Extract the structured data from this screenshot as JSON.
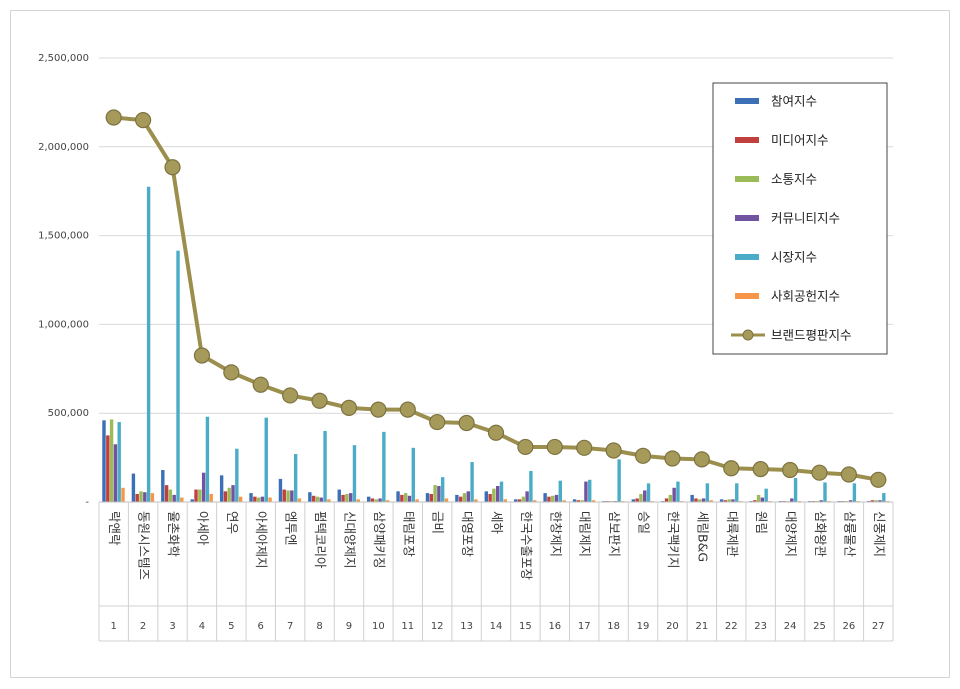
{
  "chart_data": {
    "type": "bar",
    "title": "",
    "xlabel": "",
    "ylabel": "",
    "ylim": [
      0,
      2500000
    ],
    "yticks": [
      "-",
      "500,000",
      "1,000,000",
      "1,500,000",
      "2,000,000",
      "2,500,000"
    ],
    "grid": true,
    "legend_position": "top-right",
    "categories": [
      "락앤락",
      "동원시스템즈",
      "율촌화학",
      "아세아",
      "연우",
      "아세아제지",
      "엠투엔",
      "펌텍코리아",
      "신대양제지",
      "삼양패키징",
      "태림포장",
      "금비",
      "대영포장",
      "세하",
      "한국수출포장",
      "한창제지",
      "대림제지",
      "삼보판지",
      "승일",
      "한국팩키지",
      "세림B&G",
      "대륙제관",
      "원림",
      "대양제지",
      "삼화왕관",
      "삼륭물산",
      "신풍제지"
    ],
    "ranks": [
      "1",
      "2",
      "3",
      "4",
      "5",
      "6",
      "7",
      "8",
      "9",
      "10",
      "11",
      "12",
      "13",
      "14",
      "15",
      "16",
      "17",
      "18",
      "19",
      "20",
      "21",
      "22",
      "23",
      "24",
      "25",
      "26",
      "27"
    ],
    "series": [
      {
        "name": "참여지수",
        "color": "#3b6fb6",
        "kind": "bar",
        "values": [
          460000,
          160000,
          180000,
          15000,
          150000,
          50000,
          130000,
          55000,
          70000,
          30000,
          60000,
          50000,
          40000,
          60000,
          15000,
          50000,
          15000,
          5000,
          15000,
          5000,
          40000,
          15000,
          5000,
          5000,
          5000,
          5000,
          5000
        ]
      },
      {
        "name": "미디어지수",
        "color": "#c0403d",
        "kind": "bar",
        "values": [
          375000,
          45000,
          95000,
          70000,
          60000,
          30000,
          70000,
          35000,
          40000,
          20000,
          40000,
          45000,
          30000,
          45000,
          15000,
          30000,
          10000,
          5000,
          20000,
          20000,
          20000,
          10000,
          10000,
          5000,
          5000,
          5000,
          10000
        ]
      },
      {
        "name": "소통지수",
        "color": "#9bbb59",
        "kind": "bar",
        "values": [
          465000,
          60000,
          70000,
          70000,
          80000,
          25000,
          65000,
          30000,
          45000,
          15000,
          50000,
          95000,
          50000,
          75000,
          30000,
          35000,
          10000,
          5000,
          45000,
          40000,
          15000,
          15000,
          40000,
          5000,
          5000,
          5000,
          10000
        ]
      },
      {
        "name": "커뮤니티지수",
        "color": "#7153a0",
        "kind": "bar",
        "values": [
          325000,
          55000,
          40000,
          165000,
          95000,
          30000,
          65000,
          25000,
          50000,
          20000,
          35000,
          90000,
          60000,
          90000,
          60000,
          40000,
          115000,
          5000,
          65000,
          80000,
          20000,
          15000,
          25000,
          20000,
          10000,
          10000,
          10000
        ]
      },
      {
        "name": "시장지수",
        "color": "#4aacc6",
        "kind": "bar",
        "values": [
          450000,
          1775000,
          1415000,
          480000,
          300000,
          475000,
          270000,
          400000,
          320000,
          395000,
          305000,
          140000,
          225000,
          115000,
          175000,
          120000,
          125000,
          240000,
          105000,
          115000,
          105000,
          105000,
          75000,
          135000,
          110000,
          105000,
          50000
        ]
      },
      {
        "name": "사회공헌지수",
        "color": "#f79646",
        "kind": "bar",
        "values": [
          80000,
          50000,
          25000,
          45000,
          30000,
          25000,
          20000,
          15000,
          15000,
          10000,
          15000,
          20000,
          15000,
          15000,
          10000,
          10000,
          10000,
          5000,
          5000,
          5000,
          10000,
          5000,
          5000,
          5000,
          5000,
          5000,
          5000
        ]
      },
      {
        "name": "브랜드평판지수",
        "color": "#9c8f4e",
        "kind": "line",
        "values": [
          2165000,
          2150000,
          1885000,
          825000,
          730000,
          660000,
          600000,
          570000,
          530000,
          520000,
          520000,
          450000,
          445000,
          390000,
          310000,
          310000,
          305000,
          290000,
          260000,
          245000,
          240000,
          190000,
          185000,
          180000,
          165000,
          155000,
          125000
        ]
      }
    ]
  }
}
